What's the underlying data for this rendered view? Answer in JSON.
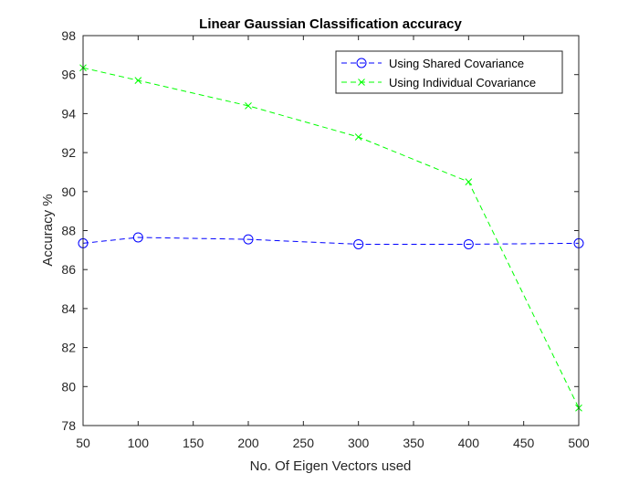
{
  "chart_data": {
    "type": "line",
    "title": "Linear Gaussian Classification accuracy",
    "xlabel": "No. Of Eigen Vectors used",
    "ylabel": "Accuracy %",
    "xlim": [
      50,
      500
    ],
    "ylim": [
      78,
      98
    ],
    "xticks": [
      "50",
      "100",
      "150",
      "200",
      "250",
      "300",
      "350",
      "400",
      "450",
      "500"
    ],
    "yticks": [
      "78",
      "80",
      "82",
      "84",
      "86",
      "88",
      "90",
      "92",
      "94",
      "96",
      "98"
    ],
    "x": [
      50,
      100,
      200,
      300,
      400,
      500
    ],
    "grid": false,
    "legend_position": "top-right",
    "series": [
      {
        "name": "Using Shared Covariance",
        "values": [
          87.35,
          87.65,
          87.55,
          87.3,
          87.3,
          87.35
        ],
        "color": "#0000ff",
        "marker": "circle",
        "line_style": "dashed"
      },
      {
        "name": "Using Individual Covariance",
        "values": [
          96.35,
          95.7,
          94.4,
          92.8,
          90.5,
          78.9
        ],
        "color": "#00ff00",
        "marker": "x",
        "line_style": "dashed"
      }
    ]
  }
}
